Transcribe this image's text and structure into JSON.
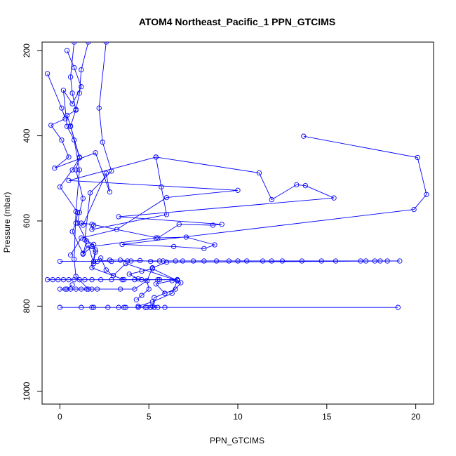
{
  "chart_data": {
    "type": "line",
    "title": "ATOM4 Northeast_Pacific_1 PPN_GTCIMS",
    "xlabel": "PPN_GTCIMS",
    "ylabel": "Pressure (mbar)",
    "xlim": [
      -1,
      21
    ],
    "ylim": [
      1030,
      180
    ],
    "y_reversed": true,
    "x_ticks": [
      "0",
      "5",
      "10",
      "15",
      "20"
    ],
    "y_ticks": [
      "200",
      "400",
      "600",
      "800",
      "1000"
    ],
    "grid": false,
    "legend": "none",
    "series_color": "#0000ff",
    "marker": "open-circle",
    "series": [
      {
        "points": [
          [
            0.8,
            180
          ],
          [
            0.6,
            262
          ],
          [
            0.7,
            300
          ],
          [
            0.9,
            340
          ],
          [
            0.4,
            352
          ],
          [
            0.6,
            377
          ],
          [
            1.1,
            452
          ],
          [
            0.7,
            480
          ],
          [
            0.0,
            520
          ],
          [
            1.0,
            580
          ],
          [
            0.9,
            605
          ],
          [
            0.7,
            625
          ],
          [
            1.3,
            676
          ],
          [
            1.6,
            657
          ],
          [
            1.9,
            700
          ],
          [
            2.3,
            687
          ],
          [
            2.6,
            715
          ],
          [
            3.0,
            728
          ],
          [
            3.7,
            700
          ],
          [
            6.6,
            740
          ],
          [
            6.3,
            770
          ],
          [
            5.2,
            790
          ],
          [
            4.4,
            800
          ],
          [
            4.8,
            803
          ]
        ]
      },
      {
        "points": [
          [
            1.6,
            180
          ],
          [
            1.2,
            245
          ],
          [
            1.1,
            300
          ],
          [
            0.9,
            338
          ],
          [
            0.6,
            378
          ],
          [
            1.1,
            450
          ],
          [
            0.9,
            480
          ],
          [
            1.3,
            547
          ],
          [
            1.1,
            580
          ],
          [
            1.0,
            605
          ],
          [
            1.5,
            647
          ],
          [
            1.3,
            678
          ],
          [
            1.8,
            660
          ],
          [
            2.0,
            668
          ],
          [
            1.8,
            710
          ],
          [
            3.6,
            738
          ],
          [
            5.5,
            738
          ],
          [
            6.6,
            738
          ],
          [
            6.3,
            740
          ],
          [
            5.4,
            748
          ],
          [
            5.9,
            770
          ],
          [
            5.3,
            780
          ],
          [
            5.2,
            800
          ],
          [
            5.5,
            803
          ]
        ]
      },
      {
        "points": [
          [
            2.6,
            180
          ],
          [
            2.2,
            335
          ],
          [
            2.4,
            415
          ],
          [
            2.9,
            483
          ],
          [
            1.7,
            534
          ],
          [
            1.4,
            644
          ],
          [
            1.9,
            655
          ],
          [
            2.0,
            673
          ],
          [
            1.9,
            695
          ],
          [
            2.9,
            695
          ],
          [
            4.0,
            694
          ],
          [
            5.6,
            694
          ],
          [
            6.5,
            694
          ],
          [
            8.1,
            694
          ],
          [
            10.0,
            694
          ],
          [
            11.9,
            694
          ],
          [
            14.7,
            694
          ],
          [
            17.2,
            694
          ],
          [
            18.4,
            694
          ],
          [
            19.1,
            694
          ],
          [
            6.0,
            697
          ],
          [
            5.2,
            710
          ],
          [
            4.9,
            740
          ],
          [
            5.0,
            760
          ],
          [
            4.6,
            775
          ],
          [
            4.3,
            785
          ]
        ]
      },
      {
        "points": [
          [
            -0.7,
            254
          ],
          [
            0.1,
            335
          ],
          [
            0.3,
            360
          ],
          [
            -0.5,
            375
          ],
          [
            0.1,
            410
          ],
          [
            0.5,
            450
          ],
          [
            -0.3,
            476
          ],
          [
            2.0,
            440
          ],
          [
            2.8,
            532
          ],
          [
            2.6,
            488
          ],
          [
            1.3,
            610
          ],
          [
            1.2,
            605
          ],
          [
            1.8,
            608
          ],
          [
            5.5,
            640
          ],
          [
            6.7,
            608
          ],
          [
            8.6,
            610
          ],
          [
            9.1,
            608
          ],
          [
            3.3,
            590
          ],
          [
            15.4,
            546
          ],
          [
            13.8,
            517
          ],
          [
            13.3,
            515
          ],
          [
            11.9,
            550
          ],
          [
            11.2,
            487
          ],
          [
            5.4,
            450
          ]
        ]
      },
      {
        "points": [
          [
            1.9,
            610
          ],
          [
            1.8,
            620
          ],
          [
            6.0,
            585
          ],
          [
            5.7,
            520
          ],
          [
            5.4,
            450
          ],
          [
            0.5,
            505
          ],
          [
            10.0,
            528
          ],
          [
            6.0,
            545
          ],
          [
            3.2,
            620
          ],
          [
            1.2,
            640
          ],
          [
            0.6,
            680
          ]
        ]
      },
      {
        "points": [
          [
            13.7,
            401
          ],
          [
            20.1,
            451
          ],
          [
            20.6,
            538
          ],
          [
            19.9,
            573
          ],
          [
            3.5,
            655
          ],
          [
            6.4,
            660
          ],
          [
            8.1,
            665
          ],
          [
            8.7,
            656
          ],
          [
            7.1,
            638
          ],
          [
            5.4,
            640
          ],
          [
            1.8,
            660
          ]
        ]
      },
      {
        "points": [
          [
            -0.7,
            738
          ],
          [
            -0.4,
            738
          ],
          [
            -0.1,
            738
          ],
          [
            0.2,
            738
          ],
          [
            0.5,
            738
          ],
          [
            0.8,
            738
          ],
          [
            1.1,
            738
          ],
          [
            1.4,
            738
          ],
          [
            1.8,
            738
          ],
          [
            2.3,
            738
          ],
          [
            2.9,
            738
          ],
          [
            3.5,
            738
          ],
          [
            4.2,
            738
          ],
          [
            4.6,
            738
          ],
          [
            5.6,
            738
          ],
          [
            6.6,
            738
          ],
          [
            6.8,
            745
          ],
          [
            6.5,
            760
          ],
          [
            5.9,
            770
          ]
        ]
      },
      {
        "points": [
          [
            0.0,
            760
          ],
          [
            0.3,
            760
          ],
          [
            0.6,
            760
          ],
          [
            0.9,
            760
          ],
          [
            1.2,
            760
          ],
          [
            1.5,
            760
          ],
          [
            1.8,
            760
          ],
          [
            2.1,
            760
          ],
          [
            3.4,
            760
          ],
          [
            4.2,
            760
          ],
          [
            4.9,
            740
          ],
          [
            4.4,
            736
          ],
          [
            3.9,
            725
          ],
          [
            4.6,
            718
          ],
          [
            5.2,
            712
          ],
          [
            6.6,
            740
          ]
        ]
      },
      {
        "points": [
          [
            0.0,
            803
          ],
          [
            1.2,
            803
          ],
          [
            1.8,
            803
          ],
          [
            1.9,
            803
          ],
          [
            2.7,
            803
          ],
          [
            3.3,
            803
          ],
          [
            3.6,
            803
          ],
          [
            3.7,
            803
          ],
          [
            4.4,
            803
          ],
          [
            4.9,
            803
          ],
          [
            5.1,
            803
          ],
          [
            5.3,
            803
          ],
          [
            5.9,
            803
          ],
          [
            19.0,
            803
          ]
        ]
      },
      {
        "points": [
          [
            0.0,
            695
          ],
          [
            2.1,
            695
          ],
          [
            2.8,
            692
          ],
          [
            3.4,
            692
          ],
          [
            3.8,
            694
          ],
          [
            4.5,
            693
          ],
          [
            5.1,
            695
          ],
          [
            5.8,
            694
          ],
          [
            6.9,
            694
          ],
          [
            7.5,
            694
          ],
          [
            8.8,
            694
          ],
          [
            9.5,
            694
          ],
          [
            10.5,
            694
          ],
          [
            11.4,
            694
          ],
          [
            12.5,
            694
          ],
          [
            13.6,
            694
          ],
          [
            15.5,
            694
          ],
          [
            16.9,
            694
          ],
          [
            17.7,
            694
          ],
          [
            18.0,
            694
          ]
        ]
      },
      {
        "points": [
          [
            0.4,
            200
          ],
          [
            0.8,
            240
          ],
          [
            1.2,
            285
          ],
          [
            0.7,
            325
          ],
          [
            0.2,
            293
          ],
          [
            0.4,
            378
          ],
          [
            0.8,
            410
          ],
          [
            1.1,
            480
          ],
          [
            0.9,
            578
          ],
          [
            0.8,
            690
          ],
          [
            0.9,
            730
          ],
          [
            1.6,
            760
          ],
          [
            0.4,
            760
          ],
          [
            0.7,
            750
          ]
        ]
      }
    ]
  }
}
